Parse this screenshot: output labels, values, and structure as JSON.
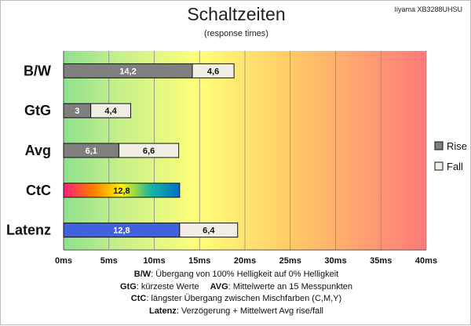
{
  "chart_data": {
    "type": "bar",
    "orientation": "horizontal",
    "stacked": true,
    "title": "Schaltzeiten",
    "subtitle": "(response times)",
    "model": "Iiyama XB3288UHSU",
    "categories": [
      "B/W",
      "GtG",
      "Avg",
      "CtC",
      "Latenz"
    ],
    "x_ticks": [
      "0ms",
      "5ms",
      "10ms",
      "15ms",
      "20ms",
      "25ms",
      "30ms",
      "35ms",
      "40ms"
    ],
    "xlim": [
      0,
      40
    ],
    "grid": true,
    "legend_position": "right",
    "series": [
      {
        "name": "Rise",
        "values": [
          14.2,
          3,
          6.1,
          12.8,
          12.8
        ],
        "labels": [
          "14,2",
          "3",
          "6,1",
          "12,8",
          "12,8"
        ]
      },
      {
        "name": "Fall",
        "values": [
          4.6,
          4.4,
          6.6,
          null,
          6.4
        ],
        "labels": [
          "4,6",
          "4,4",
          "6,6",
          "",
          "6,4"
        ]
      }
    ],
    "colors": {
      "rise": "#7f7f7f",
      "fall": "#f0eee3",
      "latenz_rise": "#3f63dc",
      "ctc_gradient": [
        "#ff1e7a",
        "#ff7b00",
        "#fff200",
        "#19b6a0",
        "#0070c8"
      ]
    }
  },
  "notes": [
    {
      "key": "B/W",
      "text": ":  Übergang von 100% Helligkeit auf 0% Helligkeit"
    },
    {
      "key": "GtG",
      "text": ": kürzeste  Werte",
      "key2": "AVG",
      "text2": ": Mittelwerte  an 15 Messpunkten"
    },
    {
      "key": "CtC",
      "text": ": längster Übergang  zwischen Mischfarben (C,M,Y)"
    },
    {
      "key": "Latenz",
      "text": ": Verzögerung  + Mittelwert Avg rise/fall"
    }
  ]
}
